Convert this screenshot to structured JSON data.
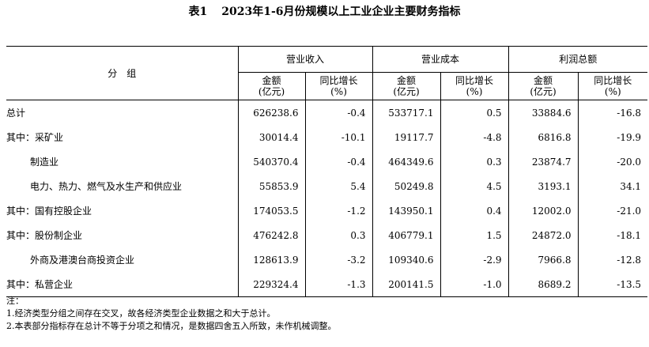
{
  "title": {
    "label": "表1",
    "text": "2023年1-6月份规模以上工业企业主要财务指标"
  },
  "headers": {
    "group": "分　组",
    "sections": [
      "营业收入",
      "营业成本",
      "利润总额"
    ],
    "sub": {
      "amount_line1": "金额",
      "amount_line2": "(亿元)",
      "growth_line1": "同比增长",
      "growth_line2": "(%)"
    }
  },
  "rows": [
    {
      "name": "总计",
      "indent": false,
      "values": [
        "626238.6",
        "-0.4",
        "533717.1",
        "0.5",
        "33884.6",
        "-16.8"
      ]
    },
    {
      "name": "其中：采矿业",
      "indent": false,
      "values": [
        "30014.4",
        "-10.1",
        "19117.7",
        "-4.8",
        "6816.8",
        "-19.9"
      ]
    },
    {
      "name": "制造业",
      "indent": true,
      "values": [
        "540370.4",
        "-0.4",
        "464349.6",
        "0.3",
        "23874.7",
        "-20.0"
      ]
    },
    {
      "name": "电力、热力、燃气及水生产和供应业",
      "indent": true,
      "values": [
        "55853.9",
        "5.4",
        "50249.8",
        "4.5",
        "3193.1",
        "34.1"
      ]
    },
    {
      "name": "其中：国有控股企业",
      "indent": false,
      "values": [
        "174053.5",
        "-1.2",
        "143950.1",
        "0.4",
        "12002.0",
        "-21.0"
      ]
    },
    {
      "name": "其中：股份制企业",
      "indent": false,
      "values": [
        "476242.8",
        "0.3",
        "406779.1",
        "1.5",
        "24872.0",
        "-18.1"
      ]
    },
    {
      "name": "外商及港澳台商投资企业",
      "indent": true,
      "values": [
        "128613.9",
        "-3.2",
        "109340.6",
        "-2.9",
        "7966.8",
        "-12.8"
      ]
    },
    {
      "name": "其中：私营企业",
      "indent": false,
      "values": [
        "229324.4",
        "-1.3",
        "200141.5",
        "-1.0",
        "8689.2",
        "-13.5"
      ]
    }
  ],
  "notes": [
    "注：",
    "1.经济类型分组之间存在交叉，故各经济类型企业数据之和大于总计。",
    "2.本表部分指标存在总计不等于分项之和情况，是数据四舍五入所致，未作机械调整。"
  ]
}
